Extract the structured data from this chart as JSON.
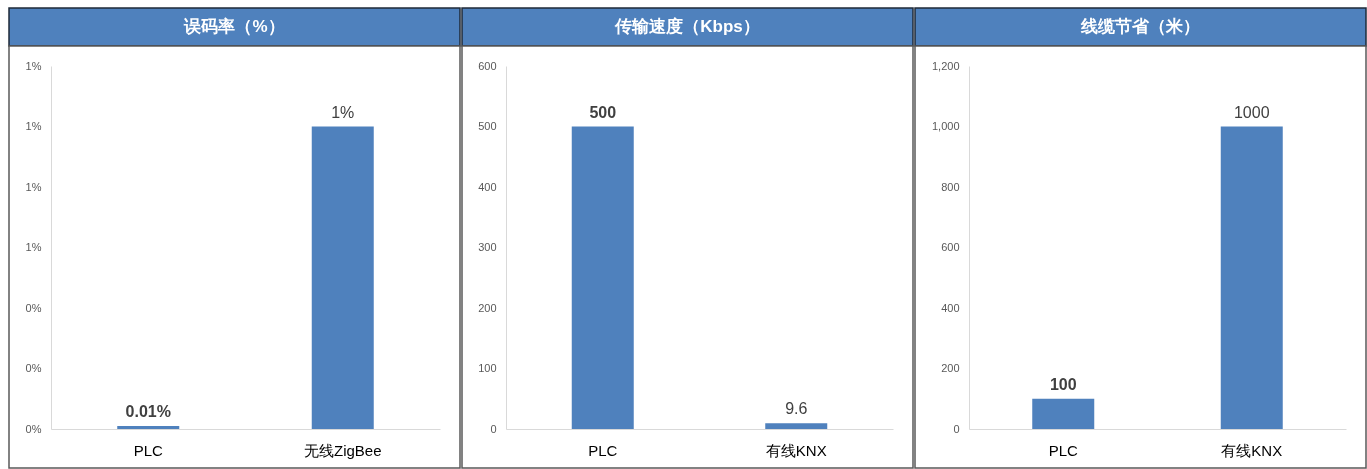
{
  "chart_data": [
    {
      "type": "bar",
      "title": "误码率（%）",
      "categories": [
        "PLC",
        "无线ZigBee"
      ],
      "values": [
        0.01,
        1
      ],
      "color": "#4f81bd",
      "value_labels": [
        "0.01%",
        "1%"
      ],
      "ylim": [
        0,
        1.2
      ],
      "yticks": [
        {
          "value": 0,
          "label": "0%"
        },
        {
          "value": 0.2,
          "label": "0%"
        },
        {
          "value": 0.4,
          "label": "0%"
        },
        {
          "value": 0.6,
          "label": "1%"
        },
        {
          "value": 0.8,
          "label": "1%"
        },
        {
          "value": 1,
          "label": "1%"
        },
        {
          "value": 1.2,
          "label": "1%"
        }
      ]
    },
    {
      "type": "bar",
      "title": "传输速度（Kbps）",
      "categories": [
        "PLC",
        "有线KNX"
      ],
      "values": [
        500,
        9.6
      ],
      "color": "#4f81bd",
      "data_labels": true,
      "ylim": [
        0,
        600
      ],
      "yticks": [
        0,
        100,
        200,
        300,
        400,
        500,
        600
      ]
    },
    {
      "type": "bar",
      "title": "线缆节省（米）",
      "categories": [
        "PLC",
        "有线KNX"
      ],
      "values": [
        100,
        1000
      ],
      "color": "#4f81bd",
      "data_labels": true,
      "ylim": [
        0,
        1200
      ],
      "yticks": [
        0,
        200,
        400,
        600,
        800,
        {
          "value": 1000,
          "label": "1,000"
        },
        {
          "value": 1200,
          "label": "1,200"
        }
      ]
    }
  ]
}
